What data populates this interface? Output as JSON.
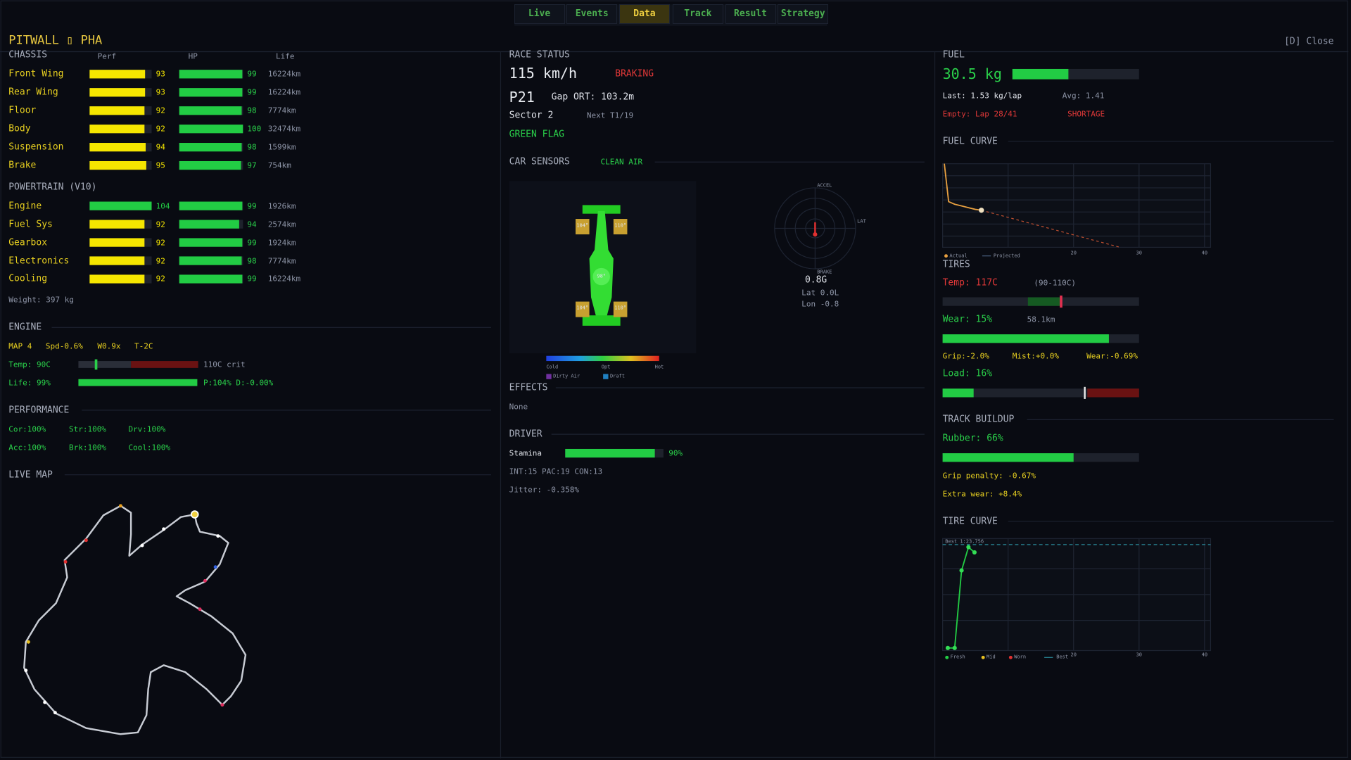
{
  "tabs": [
    "Live",
    "Events",
    "Data",
    "Track",
    "Result",
    "Strategy"
  ],
  "active_tab": "Data",
  "header": {
    "title": "PITWALL ▯ PHA",
    "close": "[D] Close"
  },
  "chassis": {
    "title": "CHASSIS",
    "columns": [
      "Perf",
      "HP",
      "Life"
    ],
    "rows": [
      {
        "name": "Front Wing",
        "perf": 93,
        "hp": 99,
        "life": "16224km",
        "perf_color": "#f5e600"
      },
      {
        "name": "Rear Wing",
        "perf": 93,
        "hp": 99,
        "life": "16224km",
        "perf_color": "#f5e600"
      },
      {
        "name": "Floor",
        "perf": 92,
        "hp": 98,
        "life": "7774km",
        "perf_color": "#f5e600"
      },
      {
        "name": "Body",
        "perf": 92,
        "hp": 100,
        "life": "32474km",
        "perf_color": "#f5e600"
      },
      {
        "name": "Suspension",
        "perf": 94,
        "hp": 98,
        "life": "1599km",
        "perf_color": "#f5e600"
      },
      {
        "name": "Brake",
        "perf": 95,
        "hp": 97,
        "life": "754km",
        "perf_color": "#f5e600"
      }
    ]
  },
  "powertrain": {
    "title": "POWERTRAIN (V10)",
    "rows": [
      {
        "name": "Engine",
        "perf": 104,
        "hp": 99,
        "life": "1926km",
        "perf_color": "#22cc44"
      },
      {
        "name": "Fuel Sys",
        "perf": 92,
        "hp": 94,
        "life": "2574km",
        "perf_color": "#f5e600"
      },
      {
        "name": "Gearbox",
        "perf": 92,
        "hp": 99,
        "life": "1924km",
        "perf_color": "#f5e600"
      },
      {
        "name": "Electronics",
        "perf": 92,
        "hp": 98,
        "life": "7774km",
        "perf_color": "#f5e600"
      },
      {
        "name": "Cooling",
        "perf": 92,
        "hp": 99,
        "life": "16224km",
        "perf_color": "#f5e600"
      }
    ]
  },
  "weight": "Weight: 397 kg",
  "engine": {
    "title": "ENGINE",
    "settings": [
      "MAP 4",
      "Spd-0.6%",
      "W0.9x",
      "T-2C"
    ],
    "temp": "Temp: 90C",
    "crit": "110C crit",
    "life": "Life: 99%",
    "detail": "P:104% D:-0.00%"
  },
  "performance": {
    "title": "PERFORMANCE",
    "items": [
      "Cor:100%",
      "Str:100%",
      "Drv:100%",
      "Acc:100%",
      "Brk:100%",
      "Cool:100%"
    ]
  },
  "live_map": {
    "title": "LIVE MAP"
  },
  "race_status": {
    "title": "RACE STATUS",
    "speed": "115 km/h",
    "state": "BRAKING",
    "position": "P21",
    "gap": "Gap ORT: 103.2m",
    "sector": "Sector 2",
    "next": "Next T1/19",
    "flag": "GREEN FLAG"
  },
  "car_sensors": {
    "title": "CAR SENSORS",
    "air": "CLEAN AIR",
    "tire_temps": [
      "104°",
      "110°",
      "98°",
      "104°",
      "110°"
    ],
    "scale": [
      "Cold",
      "Opt",
      "Hot"
    ],
    "legend": [
      "Dirty Air",
      "Draft"
    ],
    "g_labels": [
      "ACCEL",
      "LAT",
      "BRAKE"
    ],
    "g": "0.8G",
    "lat": "Lat 0.0L",
    "lon": "Lon -0.8"
  },
  "effects": {
    "title": "EFFECTS",
    "value": "None"
  },
  "driver": {
    "title": "DRIVER",
    "stamina_label": "Stamina",
    "stamina": "90%",
    "stats": "INT:15 PAC:19 CON:13",
    "jitter": "Jitter: -0.358%"
  },
  "fuel": {
    "title": "FUEL",
    "amount": "30.5 kg",
    "last": "Last: 1.53 kg/lap",
    "avg": "Avg: 1.41",
    "empty": "Empty: Lap 28/41",
    "warning": "SHORTAGE"
  },
  "fuel_curve": {
    "title": "FUEL CURVE",
    "legend": [
      "Actual",
      "Projected"
    ],
    "xticks": [
      "20",
      "30",
      "40"
    ]
  },
  "tires": {
    "title": "TIRES",
    "temp": "Temp: 117C",
    "range": "(90-110C)",
    "wear": "Wear: 15%",
    "distance": "58.1km",
    "grip": "Grip:-2.0%",
    "mist": "Mist:+0.0%",
    "wear_rate": "Wear:-0.69%",
    "load": "Load: 16%"
  },
  "track_buildup": {
    "title": "TRACK BUILDUP",
    "rubber": "Rubber: 66%",
    "grip_penalty": "Grip penalty: -0.67%",
    "extra_wear": "Extra wear: +8.4%"
  },
  "tire_curve": {
    "title": "TIRE CURVE",
    "best": "Best 1:23.756",
    "legend": [
      "Fresh",
      "Mid",
      "Worn",
      "Best"
    ],
    "xticks": [
      "20",
      "30",
      "40"
    ]
  }
}
